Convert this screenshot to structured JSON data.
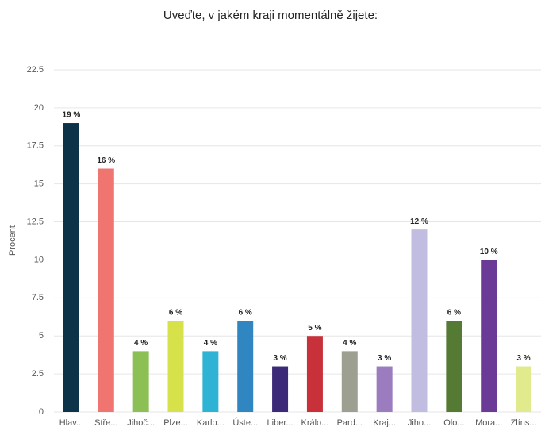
{
  "chart_data": {
    "type": "bar",
    "title": "Uveďte, v jakém kraji momentálně žijete:",
    "y_label": "Procent",
    "categories": [
      "Hlav...",
      "Stře...",
      "Jihoč...",
      "Plze...",
      "Karlo...",
      "Úste...",
      "Liber...",
      "Králo...",
      "Pard...",
      "Kraj...",
      "Jiho...",
      "Olo...",
      "Mora...",
      "Zlíns..."
    ],
    "values": [
      19,
      16,
      4,
      6,
      4,
      6,
      3,
      5,
      4,
      3,
      12,
      6,
      10,
      3
    ],
    "value_labels": [
      "19 %",
      "16 %",
      "4 %",
      "6 %",
      "4 %",
      "6 %",
      "3 %",
      "5 %",
      "4 %",
      "3 %",
      "12 %",
      "6 %",
      "10 %",
      "3 %"
    ],
    "colors": [
      "#0d3349",
      "#f07470",
      "#8cc054",
      "#d7e24b",
      "#2fb3d4",
      "#2f86c0",
      "#3c2a78",
      "#c8303a",
      "#9d9f90",
      "#9a7cbf",
      "#c0bde0",
      "#557a33",
      "#6b3a96",
      "#e2ea8e"
    ],
    "ylim": [
      0,
      22.5
    ],
    "yticks": [
      0,
      2.5,
      5,
      7.5,
      10,
      12.5,
      15,
      17.5,
      20,
      22.5
    ],
    "grid": true
  }
}
